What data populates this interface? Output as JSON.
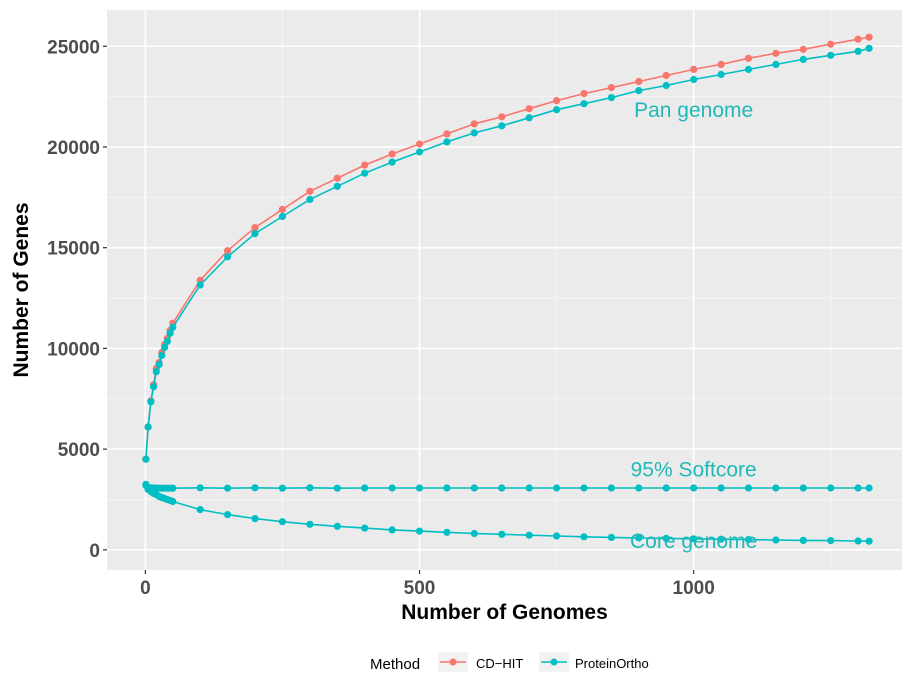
{
  "chart_data": {
    "type": "line",
    "xlabel": "Number of Genomes",
    "ylabel": "Number of Genes",
    "xlim": [
      -70,
      1380
    ],
    "ylim": [
      -1000,
      26800
    ],
    "x_ticks": [
      0,
      500,
      1000
    ],
    "x_tick_labels": [
      "0",
      "500",
      "1000"
    ],
    "y_ticks": [
      0,
      5000,
      10000,
      15000,
      20000,
      25000
    ],
    "y_tick_labels": [
      "0",
      "5000",
      "10000",
      "15000",
      "20000",
      "25000"
    ],
    "grid": true,
    "legend": {
      "title": "Method",
      "position": "bottom",
      "entries": [
        {
          "label": "CD−HIT",
          "color": "#f8766d"
        },
        {
          "label": "ProteinOrtho",
          "color": "#00bfc4"
        }
      ]
    },
    "annotations": [
      {
        "text": "Pan genome",
        "x": 1000,
        "y": 21500
      },
      {
        "text": "95% Softcore",
        "x": 1000,
        "y": 3650
      },
      {
        "text": "Core genome",
        "x": 1000,
        "y": 100
      }
    ],
    "series": [
      {
        "method": "CD−HIT",
        "curve": "Pan genome",
        "color": "#f8766d",
        "x": [
          1,
          5,
          10,
          15,
          20,
          25,
          30,
          35,
          40,
          45,
          50,
          100,
          150,
          200,
          250,
          300,
          350,
          400,
          450,
          500,
          550,
          600,
          650,
          700,
          750,
          800,
          850,
          900,
          950,
          1000,
          1050,
          1100,
          1150,
          1200,
          1250,
          1300,
          1320
        ],
        "values": [
          4500,
          6100,
          7400,
          8200,
          9000,
          9300,
          9800,
          10200,
          10500,
          10900,
          11250,
          13380,
          14850,
          16000,
          16900,
          17800,
          18450,
          19100,
          19650,
          20150,
          20650,
          21150,
          21500,
          21900,
          22300,
          22650,
          22950,
          23250,
          23550,
          23850,
          24100,
          24400,
          24650,
          24850,
          25100,
          25350,
          25450
        ]
      },
      {
        "method": "ProteinOrtho",
        "curve": "Pan genome",
        "color": "#00bfc4",
        "x": [
          1,
          5,
          10,
          15,
          20,
          25,
          30,
          35,
          40,
          45,
          50,
          100,
          150,
          200,
          250,
          300,
          350,
          400,
          450,
          500,
          550,
          600,
          650,
          700,
          750,
          800,
          850,
          900,
          950,
          1000,
          1050,
          1100,
          1150,
          1200,
          1250,
          1300,
          1320
        ],
        "values": [
          4500,
          6100,
          7350,
          8100,
          8850,
          9200,
          9650,
          10050,
          10350,
          10750,
          11050,
          13150,
          14550,
          15700,
          16550,
          17400,
          18050,
          18700,
          19250,
          19750,
          20250,
          20700,
          21050,
          21450,
          21850,
          22150,
          22450,
          22800,
          23050,
          23350,
          23600,
          23850,
          24100,
          24350,
          24550,
          24750,
          24900
        ]
      },
      {
        "method": "ProteinOrtho",
        "curve": "95% Softcore",
        "color": "#00bfc4",
        "x": [
          1,
          5,
          10,
          15,
          20,
          25,
          30,
          35,
          40,
          45,
          50,
          100,
          150,
          200,
          250,
          300,
          350,
          400,
          450,
          500,
          550,
          600,
          650,
          700,
          750,
          800,
          850,
          900,
          950,
          1000,
          1050,
          1100,
          1150,
          1200,
          1250,
          1300,
          1320
        ],
        "values": [
          3250,
          3100,
          3080,
          3070,
          3070,
          3060,
          3060,
          3060,
          3060,
          3060,
          3060,
          3080,
          3060,
          3080,
          3060,
          3080,
          3060,
          3070,
          3070,
          3070,
          3070,
          3070,
          3070,
          3070,
          3070,
          3070,
          3070,
          3070,
          3070,
          3070,
          3070,
          3070,
          3070,
          3070,
          3070,
          3070,
          3070
        ]
      },
      {
        "method": "ProteinOrtho",
        "curve": "Core genome",
        "color": "#00bfc4",
        "x": [
          1,
          5,
          10,
          15,
          20,
          25,
          30,
          35,
          40,
          45,
          50,
          100,
          150,
          200,
          250,
          300,
          350,
          400,
          450,
          500,
          550,
          600,
          650,
          700,
          750,
          800,
          850,
          900,
          950,
          1000,
          1050,
          1100,
          1150,
          1200,
          1250,
          1300,
          1320
        ],
        "values": [
          3200,
          3000,
          2900,
          2800,
          2750,
          2650,
          2600,
          2550,
          2500,
          2450,
          2400,
          2000,
          1750,
          1550,
          1400,
          1270,
          1170,
          1080,
          990,
          930,
          870,
          810,
          770,
          730,
          690,
          650,
          620,
          590,
          570,
          550,
          530,
          510,
          490,
          470,
          460,
          440,
          430
        ]
      }
    ]
  }
}
